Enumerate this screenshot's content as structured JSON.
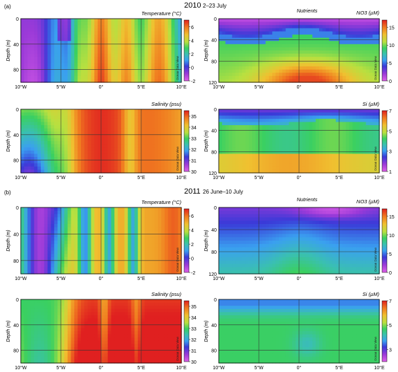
{
  "figure": {
    "section_a": {
      "tag": "(a)",
      "year": "2010",
      "dates": "2–23 July"
    },
    "section_b": {
      "tag": "(b)",
      "year": "2011",
      "dates": "26 June–10 July"
    },
    "ocean_data_view": "Ocean Data View"
  },
  "colors": {
    "scale": [
      "#e060e8",
      "#9a3ad8",
      "#3a3ad8",
      "#3aa0f0",
      "#3ac0b0",
      "#3ad060",
      "#b8e040",
      "#f0c030",
      "#f07a20",
      "#e02020"
    ],
    "frame": "#000000",
    "grid": "#333333"
  },
  "chart_data": [
    {
      "panel": "2010-temperature",
      "type": "heatmap",
      "title": "Temperature (°C)",
      "ylabel": "Depth (m)",
      "xticks": [
        "10°W",
        "5°W",
        "0°",
        "5°E",
        "10°E"
      ],
      "yticks": [
        "0",
        "40",
        "80"
      ],
      "colorbar_ticks": [
        "6",
        "4",
        "2",
        "0",
        "-2"
      ],
      "xlim": [
        -10,
        10
      ],
      "ylim": [
        0,
        100
      ],
      "zlim": [
        -2,
        7
      ]
    },
    {
      "panel": "2010-nutrients-no3",
      "type": "heatmap",
      "title": "Nutrients",
      "variable": "NO3 (µM)",
      "ylabel": "Depth (m)",
      "xticks": [
        "10°W",
        "5°W",
        "0°",
        "5°E",
        "10°E"
      ],
      "yticks": [
        "0",
        "40",
        "80",
        "120"
      ],
      "colorbar_ticks": [
        "15",
        "10",
        "5",
        "0"
      ],
      "xlim": [
        -10,
        10
      ],
      "ylim": [
        0,
        120
      ],
      "zlim": [
        0,
        17
      ]
    },
    {
      "panel": "2010-salinity",
      "type": "heatmap",
      "title": "Salinity (psu)",
      "ylabel": "Depth (m)",
      "xticks": [
        "10°W",
        "5°W",
        "0°",
        "5°E",
        "10°E"
      ],
      "yticks": [
        "0",
        "40",
        "80"
      ],
      "colorbar_ticks": [
        "35",
        "34",
        "33",
        "32",
        "31",
        "30"
      ],
      "xlim": [
        -10,
        10
      ],
      "ylim": [
        0,
        100
      ],
      "zlim": [
        30,
        35.5
      ]
    },
    {
      "panel": "2010-si",
      "type": "heatmap",
      "title": "Si (µM)",
      "ylabel": "Depth (m)",
      "xticks": [
        "10°W",
        "5°W",
        "0°",
        "5°E",
        "10°E"
      ],
      "yticks": [
        "0",
        "40",
        "80",
        "120"
      ],
      "colorbar_ticks": [
        "7",
        "5",
        "3",
        "1"
      ],
      "xlim": [
        -10,
        10
      ],
      "ylim": [
        0,
        120
      ],
      "zlim": [
        1,
        7
      ]
    },
    {
      "panel": "2011-temperature",
      "type": "heatmap",
      "title": "Temperature (°C)",
      "ylabel": "Depth (m)",
      "xticks": [
        "10°W",
        "5°W",
        "0°",
        "5°E",
        "10°E"
      ],
      "yticks": [
        "0",
        "40",
        "80"
      ],
      "colorbar_ticks": [
        "6",
        "4",
        "2",
        "0",
        "-2"
      ],
      "xlim": [
        -10,
        10
      ],
      "ylim": [
        0,
        100
      ],
      "zlim": [
        -2,
        7
      ]
    },
    {
      "panel": "2011-nutrients-no3",
      "type": "heatmap",
      "title": "Nutrients",
      "variable": "NO3 (µM)",
      "ylabel": "Depth (m)",
      "xticks": [
        "10°W",
        "5°W",
        "0°",
        "5°E",
        "10°E"
      ],
      "yticks": [
        "0",
        "40",
        "80",
        "120"
      ],
      "colorbar_ticks": [
        "15",
        "10",
        "5",
        "0"
      ],
      "xlim": [
        -10,
        10
      ],
      "ylim": [
        0,
        120
      ],
      "zlim": [
        0,
        17
      ]
    },
    {
      "panel": "2011-salinity",
      "type": "heatmap",
      "title": "Salinity (psu)",
      "ylabel": "Depth (m)",
      "xticks": [
        "10°W",
        "5°W",
        "0°",
        "5°E",
        "10°E"
      ],
      "yticks": [
        "0",
        "40",
        "80"
      ],
      "colorbar_ticks": [
        "35",
        "34",
        "33",
        "32",
        "31",
        "30"
      ],
      "xlim": [
        -10,
        10
      ],
      "ylim": [
        0,
        100
      ],
      "zlim": [
        30,
        35.5
      ]
    },
    {
      "panel": "2011-si",
      "type": "heatmap",
      "title": "Si (µM)",
      "ylabel": "Depth (m)",
      "xticks": [
        "10°W",
        "5°W",
        "0°",
        "5°E",
        "10°E"
      ],
      "yticks": [
        "0",
        "40",
        "80"
      ],
      "colorbar_ticks": [
        "7",
        "5",
        "3"
      ],
      "xlim": [
        -10,
        10
      ],
      "ylim": [
        0,
        100
      ],
      "zlim": [
        2,
        7
      ]
    }
  ]
}
